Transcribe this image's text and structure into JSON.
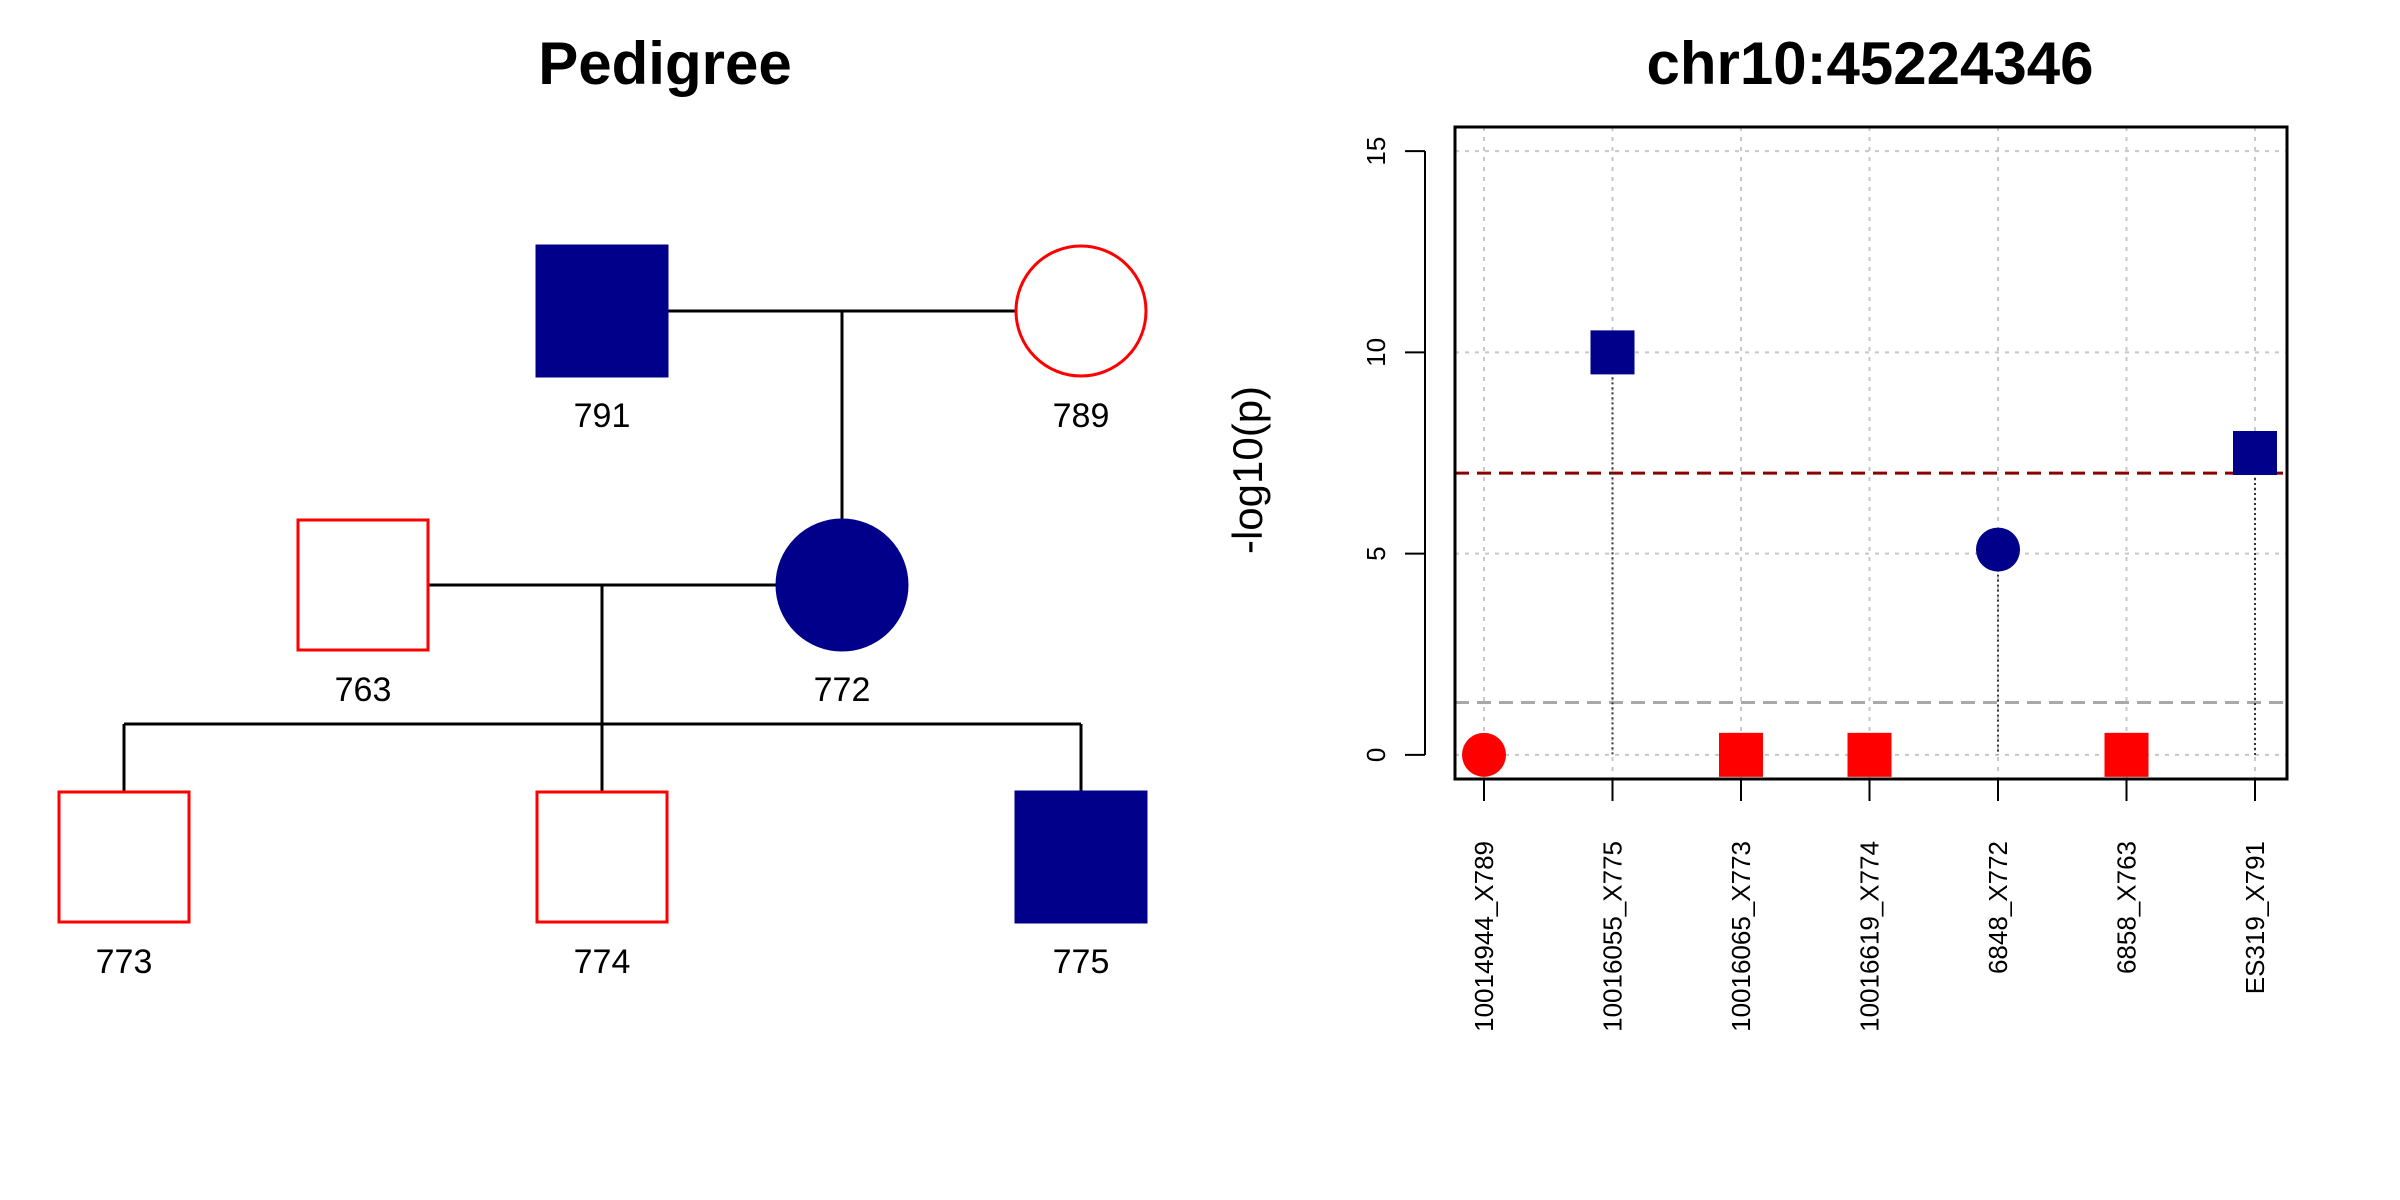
{
  "colors": {
    "affected": "#00008B",
    "unaffected": "#FF0000",
    "threshold_high": "#8B0000",
    "threshold_low": "#A9A9A9",
    "grid": "#C8C8C8"
  },
  "pedigree": {
    "title": "Pedigree",
    "individuals": [
      {
        "id": "791",
        "label": "791",
        "sex": "male",
        "affected": true
      },
      {
        "id": "789",
        "label": "789",
        "sex": "female",
        "affected": false
      },
      {
        "id": "763",
        "label": "763",
        "sex": "male",
        "affected": false
      },
      {
        "id": "772",
        "label": "772",
        "sex": "female",
        "affected": true
      },
      {
        "id": "773",
        "label": "773",
        "sex": "male",
        "affected": false
      },
      {
        "id": "774",
        "label": "774",
        "sex": "male",
        "affected": false
      },
      {
        "id": "775",
        "label": "775",
        "sex": "male",
        "affected": true
      }
    ],
    "couples": [
      [
        "791",
        "789"
      ],
      [
        "763",
        "772"
      ]
    ],
    "children": [
      {
        "parents": [
          "791",
          "789"
        ],
        "kids": [
          "772"
        ]
      },
      {
        "parents": [
          "763",
          "772"
        ],
        "kids": [
          "773",
          "774",
          "775"
        ]
      }
    ]
  },
  "chart_data": {
    "type": "scatter",
    "title": "chr10:45224346",
    "xlabel": "",
    "ylabel": "-log10(p)",
    "ylim": [
      -0.6,
      15.6
    ],
    "yticks": [
      0,
      5,
      10,
      15
    ],
    "grid": true,
    "categories": [
      "10014944_X789",
      "10016055_X775",
      "10016065_X773",
      "10016619_X774",
      "6848_X772",
      "6858_X763",
      "ES319_X791"
    ],
    "values": [
      0.0,
      10.0,
      0.0,
      0.0,
      5.1,
      0.0,
      7.5
    ],
    "shapes": [
      "circle",
      "square",
      "square",
      "square",
      "circle",
      "square",
      "square"
    ],
    "affected": [
      false,
      true,
      false,
      false,
      true,
      false,
      true
    ],
    "thresholds": [
      {
        "y": 7.0,
        "color": "#8B0000",
        "style": "dashed"
      },
      {
        "y": 1.3,
        "color": "#A9A9A9",
        "style": "dashed"
      }
    ]
  }
}
